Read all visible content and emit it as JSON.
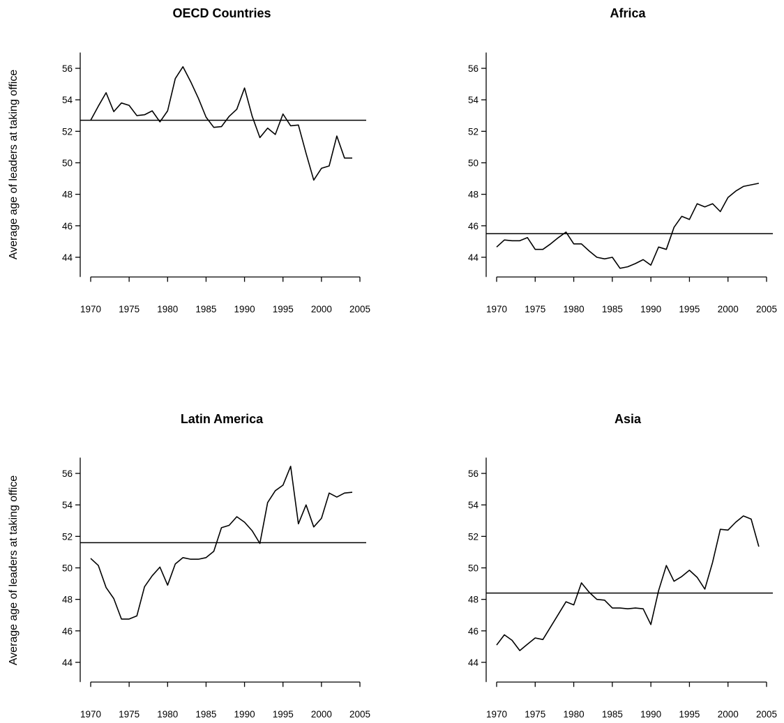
{
  "chart_data": [
    {
      "type": "line",
      "title": "OECD Countries",
      "ylabel": "Average age of leaders at taking office",
      "xlabel": "",
      "xlim": [
        1970,
        2005
      ],
      "ylim": [
        43.5,
        56.5
      ],
      "xticks": [
        "1970",
        "1975",
        "1980",
        "1985",
        "1990",
        "1995",
        "2000",
        "2005"
      ],
      "yticks": [
        "44",
        "46",
        "48",
        "50",
        "52",
        "54",
        "56"
      ],
      "mean": 52.7,
      "x": [
        1970,
        1971,
        1972,
        1973,
        1974,
        1975,
        1976,
        1977,
        1978,
        1979,
        1980,
        1981,
        1982,
        1983,
        1984,
        1985,
        1986,
        1987,
        1988,
        1989,
        1990,
        1991,
        1992,
        1993,
        1994,
        1995,
        1996,
        1997,
        1998,
        1999,
        2000,
        2001,
        2002,
        2003,
        2004
      ],
      "y": [
        52.7,
        53.6,
        54.45,
        53.25,
        53.8,
        53.65,
        53.0,
        53.05,
        53.3,
        52.6,
        53.3,
        55.35,
        56.1,
        55.15,
        54.1,
        52.9,
        52.25,
        52.3,
        52.95,
        53.4,
        54.75,
        52.95,
        51.6,
        52.2,
        51.8,
        53.1,
        52.35,
        52.4,
        50.6,
        48.9,
        49.65,
        49.8,
        51.7,
        50.3,
        50.3
      ]
    },
    {
      "type": "line",
      "title": "Africa",
      "ylabel": "",
      "xlabel": "",
      "xlim": [
        1970,
        2005
      ],
      "ylim": [
        43.5,
        56.5
      ],
      "xticks": [
        "1970",
        "1975",
        "1980",
        "1985",
        "1990",
        "1995",
        "2000",
        "2005"
      ],
      "yticks": [
        "44",
        "46",
        "48",
        "50",
        "52",
        "54",
        "56"
      ],
      "mean": 45.5,
      "x": [
        1970,
        1971,
        1972,
        1973,
        1974,
        1975,
        1976,
        1977,
        1978,
        1979,
        1980,
        1981,
        1982,
        1983,
        1984,
        1985,
        1986,
        1987,
        1988,
        1989,
        1990,
        1991,
        1992,
        1993,
        1994,
        1995,
        1996,
        1997,
        1998,
        1999,
        2000,
        2001,
        2002,
        2003,
        2004
      ],
      "y": [
        44.65,
        45.1,
        45.05,
        45.05,
        45.25,
        44.5,
        44.5,
        44.85,
        45.25,
        45.6,
        44.85,
        44.85,
        44.4,
        44.0,
        43.9,
        44.0,
        43.3,
        43.4,
        43.6,
        43.85,
        43.5,
        44.65,
        44.5,
        45.9,
        46.6,
        46.4,
        47.4,
        47.2,
        47.4,
        46.9,
        47.8,
        48.2,
        48.5,
        48.6,
        48.7
      ]
    },
    {
      "type": "line",
      "title": "Latin America",
      "ylabel": "Average age of leaders at taking office",
      "xlabel": "",
      "xlim": [
        1970,
        2005
      ],
      "ylim": [
        43.5,
        56.5
      ],
      "xticks": [
        "1970",
        "1975",
        "1980",
        "1985",
        "1990",
        "1995",
        "2000",
        "2005"
      ],
      "yticks": [
        "44",
        "46",
        "48",
        "50",
        "52",
        "54",
        "56"
      ],
      "mean": 51.6,
      "x": [
        1970,
        1971,
        1972,
        1973,
        1974,
        1975,
        1976,
        1977,
        1978,
        1979,
        1980,
        1981,
        1982,
        1983,
        1984,
        1985,
        1986,
        1987,
        1988,
        1989,
        1990,
        1991,
        1992,
        1993,
        1994,
        1995,
        1996,
        1997,
        1998,
        1999,
        2000,
        2001,
        2002,
        2003,
        2004
      ],
      "y": [
        50.6,
        50.15,
        48.75,
        48.05,
        46.75,
        46.75,
        46.95,
        48.8,
        49.5,
        50.05,
        48.9,
        50.25,
        50.65,
        50.55,
        50.55,
        50.65,
        51.05,
        52.55,
        52.7,
        53.25,
        52.9,
        52.35,
        51.55,
        54.15,
        54.9,
        55.25,
        56.45,
        52.8,
        54.0,
        52.6,
        53.15,
        54.75,
        54.5,
        54.75,
        54.8
      ]
    },
    {
      "type": "line",
      "title": "Asia",
      "ylabel": "",
      "xlabel": "",
      "xlim": [
        1970,
        2005
      ],
      "ylim": [
        43.5,
        56.5
      ],
      "xticks": [
        "1970",
        "1975",
        "1980",
        "1985",
        "1990",
        "1995",
        "2000",
        "2005"
      ],
      "yticks": [
        "44",
        "46",
        "48",
        "50",
        "52",
        "54",
        "56"
      ],
      "mean": 48.4,
      "x": [
        1970,
        1971,
        1972,
        1973,
        1974,
        1975,
        1976,
        1977,
        1978,
        1979,
        1980,
        1981,
        1982,
        1983,
        1984,
        1985,
        1986,
        1987,
        1988,
        1989,
        1990,
        1991,
        1992,
        1993,
        1994,
        1995,
        1996,
        1997,
        1998,
        1999,
        2000,
        2001,
        2002,
        2003,
        2004
      ],
      "y": [
        45.1,
        45.75,
        45.4,
        44.75,
        45.15,
        45.55,
        45.45,
        46.25,
        47.05,
        47.85,
        47.65,
        49.05,
        48.45,
        48.0,
        47.95,
        47.45,
        47.45,
        47.4,
        47.45,
        47.4,
        46.4,
        48.55,
        50.15,
        49.15,
        49.45,
        49.85,
        49.4,
        48.65,
        50.35,
        52.45,
        52.4,
        52.9,
        53.3,
        53.1,
        51.35
      ]
    }
  ]
}
